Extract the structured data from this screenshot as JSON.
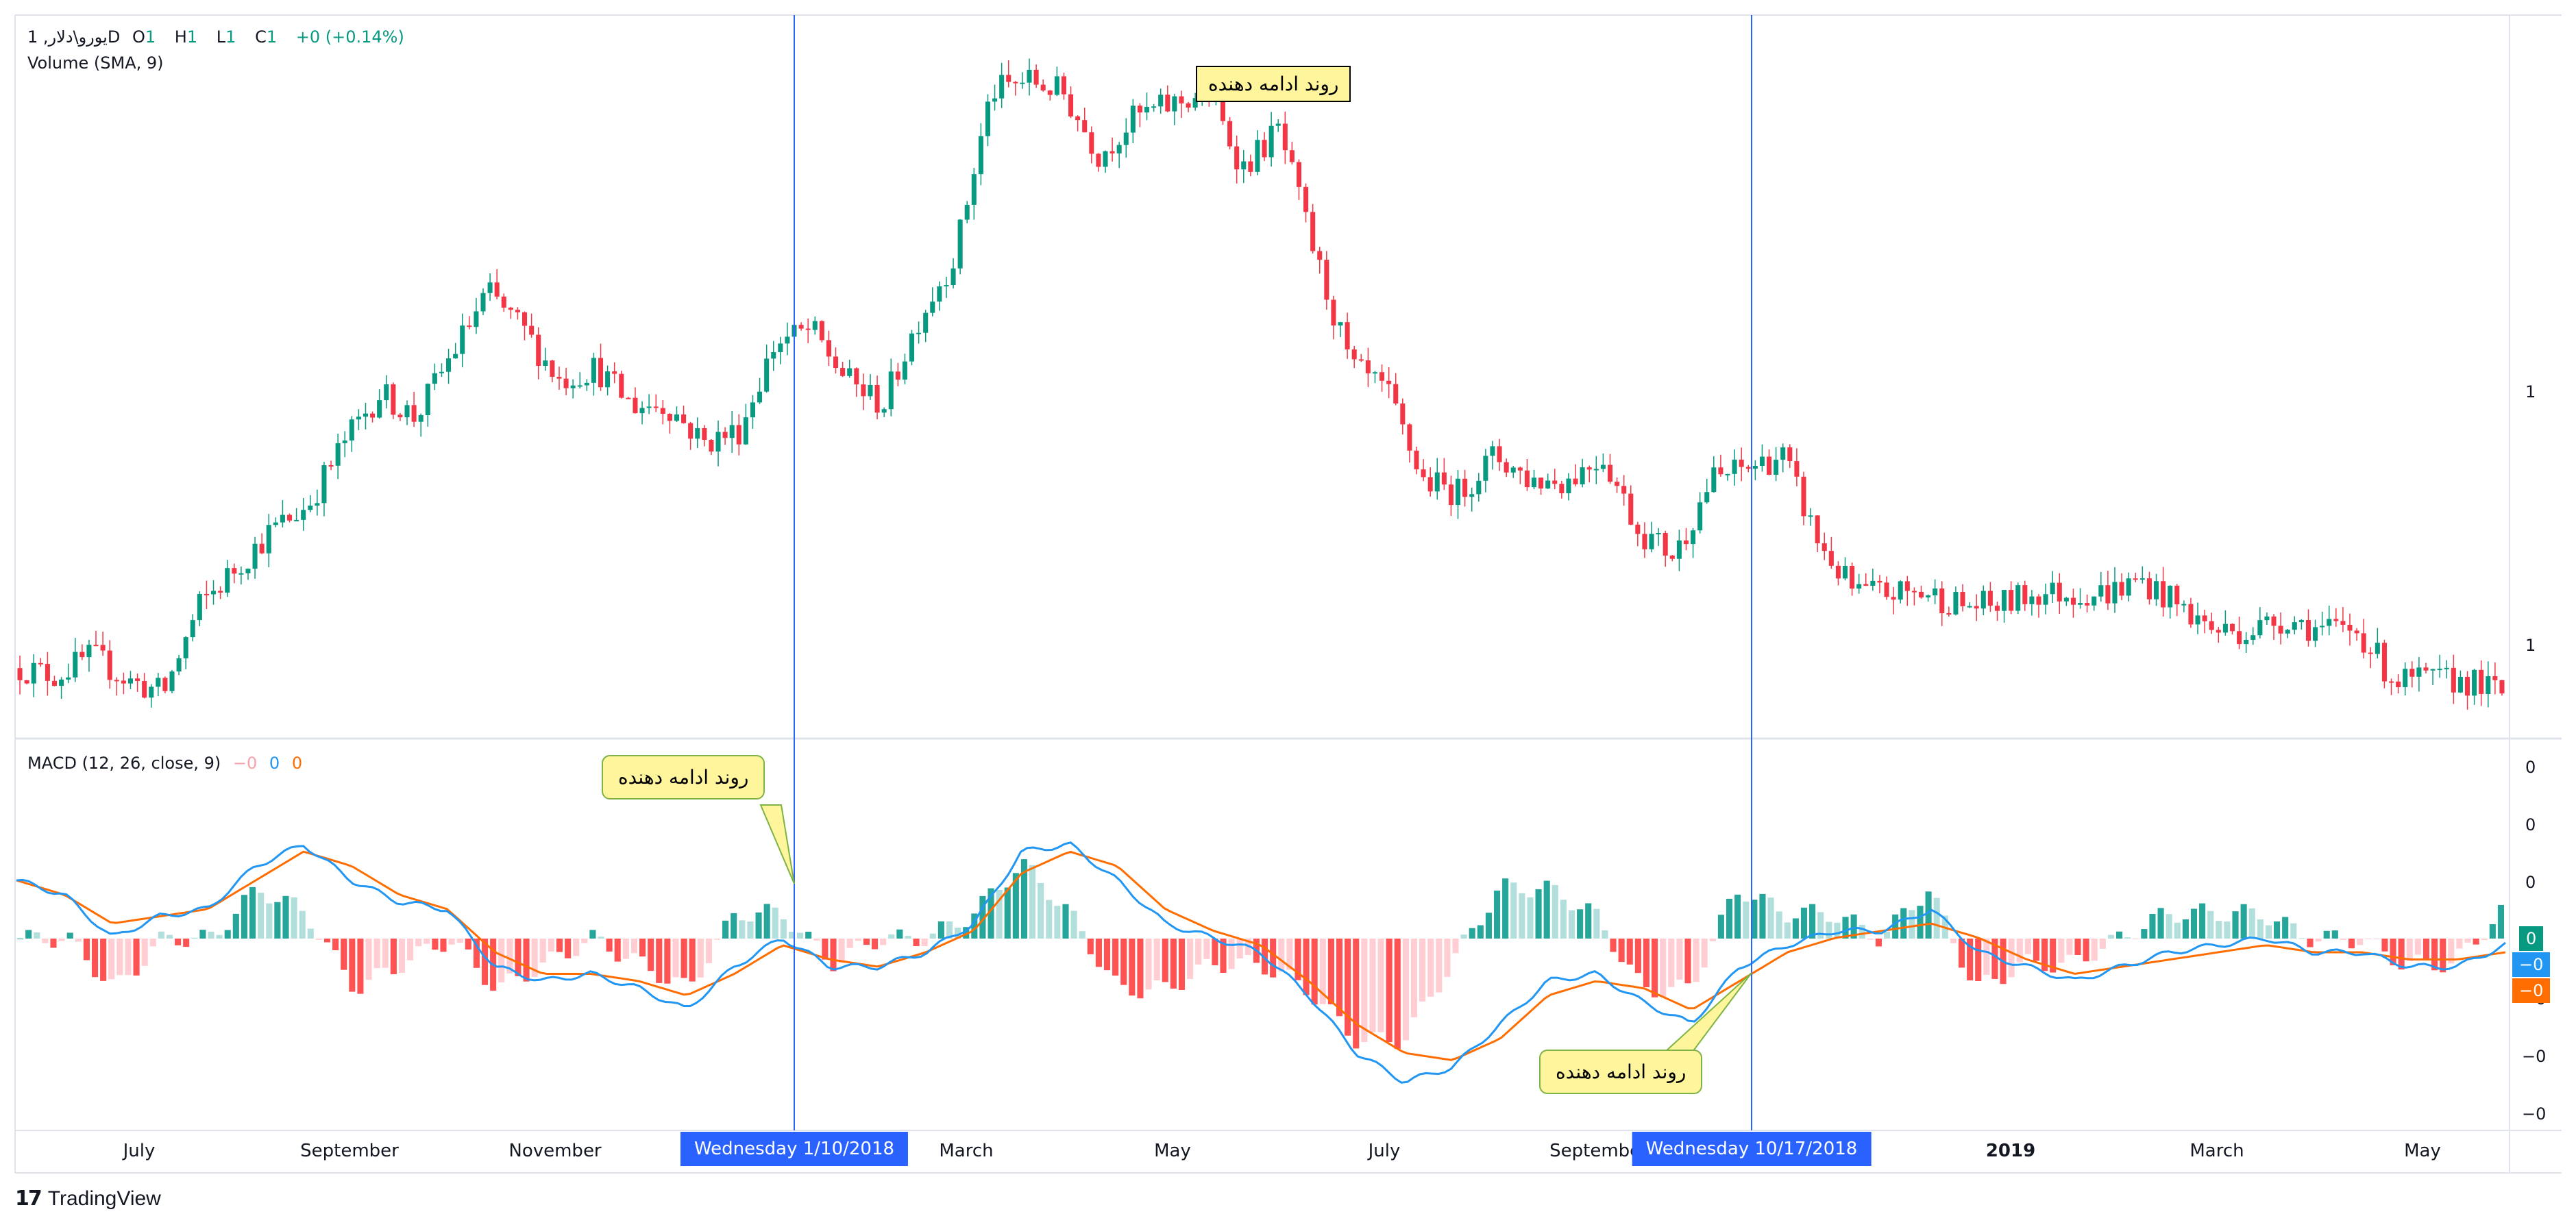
{
  "legend": {
    "symbol": "یورو\\دلار, 1D",
    "ohlc": [
      {
        "key": "O",
        "value": "1"
      },
      {
        "key": "H",
        "value": "1"
      },
      {
        "key": "L",
        "value": "1"
      },
      {
        "key": "C",
        "value": "1"
      }
    ],
    "change": "+0 (+0.14%)",
    "volume_label": "Volume (SMA, 9)",
    "macd_label": "MACD (12, 26, close, 9)",
    "macd_values": [
      "−0",
      "0",
      "0"
    ]
  },
  "annotations": {
    "top_box": "روند ادامه دهنده",
    "callout_1": "روند ادامه دهنده",
    "callout_2": "روند ادامه دهنده"
  },
  "time_axis": {
    "labels": [
      {
        "text": "July",
        "bold": false
      },
      {
        "text": "September",
        "bold": false
      },
      {
        "text": "November",
        "bold": false
      },
      {
        "text": "March",
        "bold": false
      },
      {
        "text": "May",
        "bold": false
      },
      {
        "text": "July",
        "bold": false
      },
      {
        "text": "September",
        "bold": false
      },
      {
        "text": "2019",
        "bold": true
      },
      {
        "text": "March",
        "bold": false
      },
      {
        "text": "May",
        "bold": false
      }
    ],
    "crosshair_1": "Wednesday 1/10/2018",
    "crosshair_2": "Wednesday 10/17/2018"
  },
  "price_axis": {
    "labels": [
      "1",
      "1"
    ]
  },
  "macd_axis": {
    "labels": [
      "0",
      "0",
      "0",
      "−0",
      "−0",
      "−0"
    ],
    "badges": [
      {
        "text": "0",
        "color": "#089981"
      },
      {
        "text": "−0",
        "color": "#2196f3"
      },
      {
        "text": "−0",
        "color": "#ff6d00"
      }
    ]
  },
  "brand": "TradingView",
  "colors": {
    "up": "#089981",
    "down": "#f23645",
    "macd_line": "#2196f3",
    "signal_line": "#ff6d00",
    "hist_up_strong": "#26a69a",
    "hist_up_weak": "#b2dfdb",
    "hist_down_strong": "#ff5252",
    "hist_down_weak": "#ffcdd2",
    "crosshair": "#2962ff"
  },
  "chart_data": {
    "type": "candlestick",
    "title": "",
    "price_series_anchors": [
      1.135,
      1.132,
      1.14,
      1.13,
      1.125,
      1.16,
      1.175,
      1.19,
      1.2,
      1.225,
      1.245,
      1.235,
      1.26,
      1.285,
      1.27,
      1.25,
      1.255,
      1.24,
      1.24,
      1.225,
      1.23,
      1.265,
      1.27,
      1.25,
      1.24,
      1.275,
      1.3,
      1.365,
      1.37,
      1.365,
      1.34,
      1.355,
      1.36,
      1.365,
      1.335,
      1.35,
      1.3,
      1.255,
      1.245,
      1.21,
      1.205,
      1.22,
      1.21,
      1.21,
      1.22,
      1.19,
      1.18,
      1.21,
      1.215,
      1.22,
      1.185,
      1.165,
      1.165,
      1.165,
      1.16,
      1.16,
      1.165,
      1.165,
      1.165,
      1.17,
      1.16,
      1.15,
      1.15,
      1.155,
      1.15,
      1.15,
      1.13,
      1.13,
      1.13,
      1.125
    ],
    "macd_line": [
      0.0,
      -0.01,
      -0.04,
      -0.025,
      -0.02,
      0.01,
      0.025,
      0.0,
      -0.015,
      -0.02,
      -0.06,
      -0.07,
      -0.065,
      -0.075,
      -0.09,
      -0.06,
      -0.04,
      -0.06,
      -0.06,
      -0.05,
      -0.03,
      0.02,
      0.025,
      0.0,
      -0.03,
      -0.04,
      -0.05,
      -0.08,
      -0.12,
      -0.14,
      -0.13,
      -0.1,
      -0.07,
      -0.065,
      -0.085,
      -0.1,
      -0.06,
      -0.045,
      -0.035,
      -0.035,
      -0.02,
      -0.05,
      -0.06,
      -0.07,
      -0.06,
      -0.05,
      -0.045,
      -0.04,
      -0.05,
      -0.05,
      -0.06,
      -0.06,
      -0.045
    ],
    "signal_line": [
      0.0,
      -0.01,
      -0.03,
      -0.025,
      -0.02,
      0.0,
      0.02,
      0.01,
      -0.01,
      -0.02,
      -0.05,
      -0.065,
      -0.065,
      -0.07,
      -0.08,
      -0.065,
      -0.045,
      -0.055,
      -0.06,
      -0.05,
      -0.035,
      0.005,
      0.02,
      0.01,
      -0.02,
      -0.035,
      -0.045,
      -0.07,
      -0.1,
      -0.12,
      -0.125,
      -0.11,
      -0.08,
      -0.07,
      -0.075,
      -0.09,
      -0.07,
      -0.05,
      -0.04,
      -0.035,
      -0.03,
      -0.04,
      -0.055,
      -0.065,
      -0.06,
      -0.055,
      -0.05,
      -0.045,
      -0.05,
      -0.05,
      -0.055,
      -0.055,
      -0.05
    ],
    "xlabel": "",
    "ylabel": "",
    "grid": false
  }
}
